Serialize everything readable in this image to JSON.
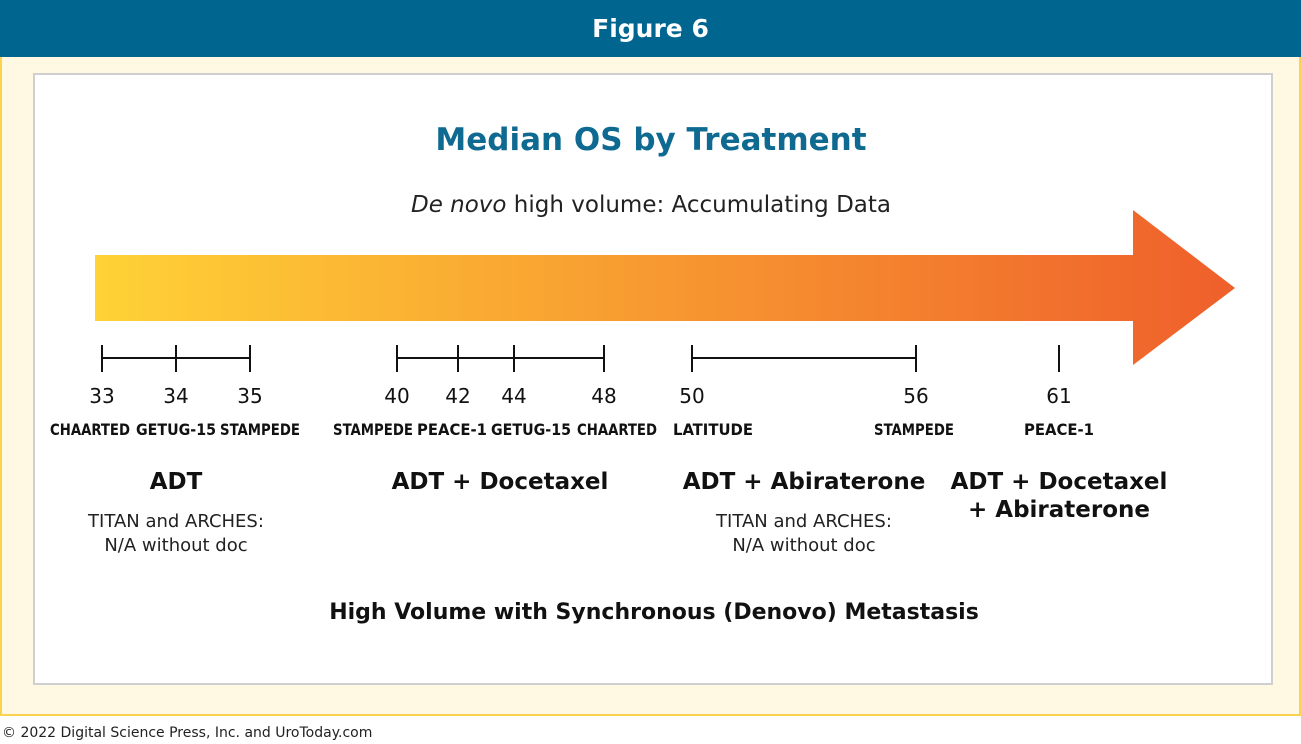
{
  "header": {
    "title": "Figure 6"
  },
  "figure": {
    "title": "Median OS by Treatment",
    "subtitle_italic": "De novo",
    "subtitle_rest": " high volume: Accumulating Data",
    "footer": "High Volume with Synchronous (Denovo) Metastasis"
  },
  "colors": {
    "header": "#00668f",
    "title": "#0e6a91",
    "arrow_start": "#ffd236",
    "arrow_end": "#ef5f2b",
    "frame_bg": "#fff8e3",
    "frame_border": "#fbd34e"
  },
  "groups": [
    {
      "name_lines": [
        "ADT"
      ],
      "note_lines": [
        "TITAN and ARCHES:",
        "N/A without doc"
      ],
      "points": [
        {
          "value": "33",
          "trial": "CHAARTED"
        },
        {
          "value": "34",
          "trial": "GETUG-15"
        },
        {
          "value": "35",
          "trial": "STAMPEDE"
        }
      ]
    },
    {
      "name_lines": [
        "ADT + Docetaxel"
      ],
      "note_lines": [],
      "points": [
        {
          "value": "40",
          "trial": "STAMPEDE"
        },
        {
          "value": "42",
          "trial": "PEACE-1"
        },
        {
          "value": "44",
          "trial": "GETUG-15"
        },
        {
          "value": "48",
          "trial": "CHAARTED"
        }
      ]
    },
    {
      "name_lines": [
        "ADT + Abiraterone"
      ],
      "note_lines": [
        "TITAN and ARCHES:",
        "N/A without doc"
      ],
      "points": [
        {
          "value": "50",
          "trial": "LATITUDE"
        },
        {
          "value": "56",
          "trial": "STAMPEDE"
        }
      ]
    },
    {
      "name_lines": [
        "ADT + Docetaxel",
        "+ Abiraterone"
      ],
      "note_lines": [],
      "points": [
        {
          "value": "61",
          "trial": "PEACE-1"
        }
      ]
    }
  ],
  "copyright": "© 2022 Digital Science Press, Inc. and UroToday.com"
}
